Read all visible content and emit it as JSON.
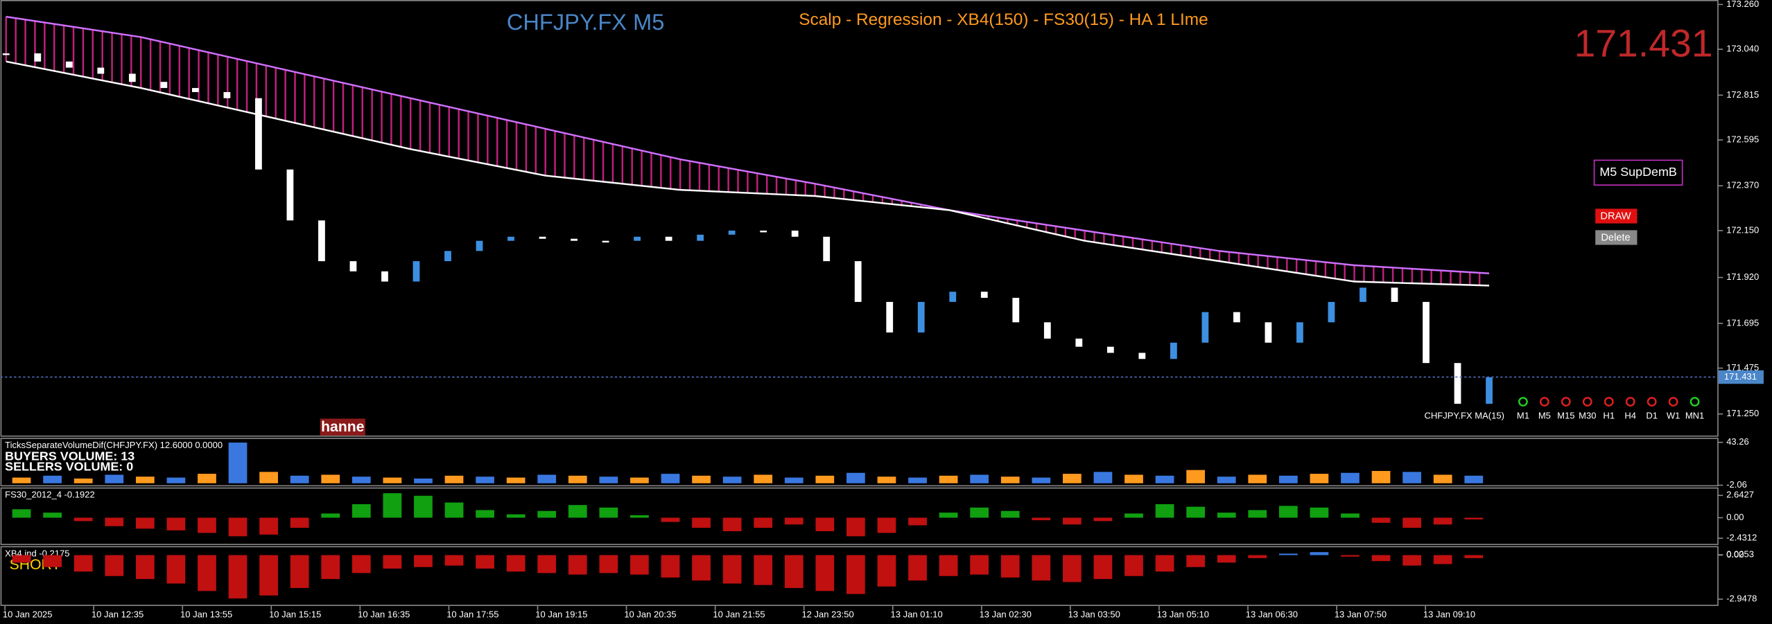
{
  "header": {
    "symbol": "CHFJPY.FX M5",
    "strategy": "Scalp - Regression - XB4(150) - FS30(15) - HA  1 LIme",
    "bid": "171.431"
  },
  "main_panel": {
    "ylim": [
      171.144,
      173.282
    ],
    "yticks": [
      {
        "value": 173.26,
        "label": "173.260"
      },
      {
        "value": 173.04,
        "label": "173.040"
      },
      {
        "value": 172.815,
        "label": "172.815"
      },
      {
        "value": 172.595,
        "label": "172.595"
      },
      {
        "value": 172.37,
        "label": "172.370"
      },
      {
        "value": 172.15,
        "label": "172.150"
      },
      {
        "value": 171.92,
        "label": "171.920"
      },
      {
        "value": 171.695,
        "label": "171.695"
      },
      {
        "value": 171.475,
        "label": "171.475"
      },
      {
        "value": 171.25,
        "label": "171.250"
      }
    ],
    "last_price": {
      "value": 171.431,
      "label": "171.431"
    },
    "closes": [
      173.02,
      172.98,
      172.95,
      172.92,
      172.88,
      172.85,
      172.83,
      172.8,
      172.45,
      172.2,
      172.0,
      171.95,
      171.9,
      172.0,
      172.05,
      172.1,
      172.12,
      172.11,
      172.1,
      172.1,
      172.12,
      172.1,
      172.13,
      172.15,
      172.15,
      172.12,
      172.0,
      171.8,
      171.65,
      171.8,
      171.85,
      171.82,
      171.7,
      171.62,
      171.58,
      171.55,
      171.52,
      171.6,
      171.75,
      171.7,
      171.6,
      171.7,
      171.8,
      171.87,
      171.8,
      171.5,
      171.3,
      171.43
    ],
    "ribbon_top": [
      173.2,
      173.1,
      172.95,
      172.8,
      172.65,
      172.5,
      172.38,
      172.25,
      172.15,
      172.05,
      171.98,
      171.94
    ],
    "ribbon_bottom": [
      172.98,
      172.85,
      172.7,
      172.55,
      172.42,
      172.35,
      172.32,
      172.25,
      172.1,
      172.0,
      171.9,
      171.88
    ],
    "ma_label": "CHFJPY.FX MA(15)",
    "marker": "hanne"
  },
  "controls": {
    "sup_dem": "M5 SupDemB",
    "draw": "DRAW",
    "delete": "Delete",
    "timeframes": [
      "M1",
      "M5",
      "M15",
      "M30",
      "H1",
      "H4",
      "D1",
      "W1",
      "MN1"
    ]
  },
  "volume_panel": {
    "title": "TicksSeparateVolumeDif(CHFJPY.FX) 12.6000 0.0000",
    "buyers": "BUYERS VOLUME: 13",
    "sellers": "SELLERS VOLUME: 0",
    "ylim": [
      -2.06,
      43.26
    ],
    "yticks": [
      43.26,
      -2.06
    ],
    "colors": [
      "#ff9a1f",
      "#3a78e0"
    ],
    "values": [
      6,
      8,
      5,
      9,
      7,
      6,
      10,
      43,
      12,
      8,
      9,
      7,
      6,
      5,
      8,
      7,
      6,
      9,
      8,
      7,
      6,
      10,
      8,
      7,
      9,
      6,
      8,
      11,
      7,
      6,
      8,
      9,
      7,
      6,
      10,
      12,
      9,
      8,
      14,
      7,
      9,
      8,
      10,
      11,
      13,
      12,
      9,
      8
    ]
  },
  "fs30_panel": {
    "title": "FS30_2012_4 -0.1922",
    "ylim": [
      -3.1,
      3.58
    ],
    "yticks": [
      2.6427,
      {
        "value": 0,
        "label": "0.00"
      },
      -2.4312
    ],
    "values": [
      1.0,
      0.6,
      -0.4,
      -1.0,
      -1.3,
      -1.5,
      -1.8,
      -2.2,
      -2.0,
      -1.2,
      0.5,
      1.6,
      2.9,
      2.6,
      1.8,
      0.9,
      0.4,
      0.8,
      1.5,
      1.2,
      0.3,
      -0.5,
      -1.2,
      -1.6,
      -1.2,
      -0.8,
      -1.6,
      -2.2,
      -1.8,
      -0.9,
      0.6,
      1.2,
      0.8,
      -0.3,
      -0.8,
      -0.4,
      0.5,
      1.6,
      1.3,
      0.6,
      0.9,
      1.4,
      1.2,
      0.5,
      -0.6,
      -1.2,
      -0.8,
      -0.2
    ]
  },
  "xb4_panel": {
    "title": "XB4 ind -0.2175",
    "signal": "SHORT",
    "ylim": [
      -3.4,
      0.6
    ],
    "yticks": [
      0.0253,
      {
        "value": 0,
        "label": "0.00"
      },
      -2.9478
    ],
    "values": [
      -0.5,
      -0.8,
      -1.1,
      -1.4,
      -1.6,
      -1.9,
      -2.4,
      -2.9,
      -2.7,
      -2.2,
      -1.6,
      -1.2,
      -0.9,
      -0.8,
      -0.7,
      -0.9,
      -1.1,
      -1.2,
      -1.3,
      -1.2,
      -1.3,
      -1.5,
      -1.7,
      -1.9,
      -2.0,
      -2.2,
      -2.4,
      -2.6,
      -2.1,
      -1.7,
      -1.4,
      -1.3,
      -1.5,
      -1.7,
      -1.8,
      -1.6,
      -1.4,
      -1.1,
      -0.8,
      -0.5,
      -0.2,
      0.1,
      0.2,
      -0.1,
      -0.4,
      -0.7,
      -0.6,
      -0.2
    ]
  },
  "time_axis": {
    "labels": [
      "10 Jan 2025",
      "10 Jan 12:35",
      "10 Jan 13:55",
      "10 Jan 15:15",
      "10 Jan 16:35",
      "10 Jan 17:55",
      "10 Jan 19:15",
      "10 Jan 20:35",
      "10 Jan 21:55",
      "12 Jan 23:50",
      "13 Jan 01:10",
      "13 Jan 02:30",
      "13 Jan 03:50",
      "13 Jan 05:10",
      "13 Jan 06:30",
      "13 Jan 07:50",
      "13 Jan 09:10"
    ]
  }
}
